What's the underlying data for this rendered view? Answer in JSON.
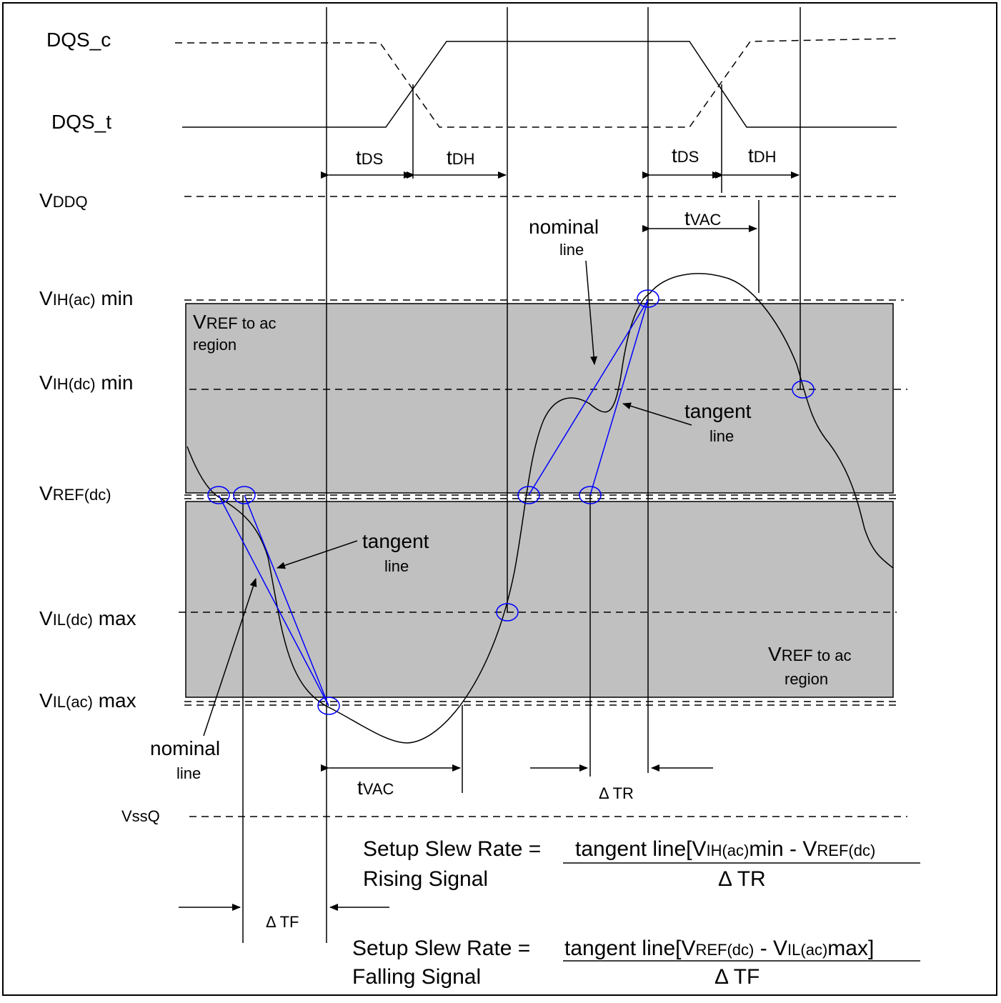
{
  "signals": {
    "dqs_c": "DQS_c",
    "dqs_t": "DQS_t"
  },
  "timing": {
    "t": "t",
    "ds": "DS",
    "dh": "DH",
    "vac": "VAC",
    "delta_tr": "Δ TR",
    "delta_tf": "Δ TF"
  },
  "levels": {
    "vddq": {
      "main": "V",
      "sub": "DDQ",
      "tail": ""
    },
    "vih_ac": {
      "main": "V",
      "sub": "IH(ac)",
      "tail": " min"
    },
    "vih_dc": {
      "main": "V",
      "sub": "IH(dc)",
      "tail": " min"
    },
    "vref_dc": {
      "main": "V",
      "sub": "REF(dc)",
      "tail": ""
    },
    "vil_dc": {
      "main": "V",
      "sub": "IL(dc)",
      "tail": " max"
    },
    "vil_ac": {
      "main": "V",
      "sub": "IL(ac)",
      "tail": " max"
    },
    "vssq": "VssQ"
  },
  "regions": {
    "v": "V",
    "sub": "REF to ac",
    "word": "region"
  },
  "annotations": {
    "nominal": "nominal",
    "tangent": "tangent",
    "line": "line"
  },
  "formulas": {
    "rising": {
      "left1": "Setup Slew Rate = ",
      "left2": "Rising Signal",
      "num_a": "tangent line[V",
      "num_a_sub": "IH(ac)",
      "num_b": "min - V",
      "num_b_sub": "REF(dc)",
      "num_c": "",
      "den": "Δ TR"
    },
    "falling": {
      "left1": "Setup Slew Rate = ",
      "left2": "Falling Signal",
      "num_a": "tangent line[V",
      "num_a_sub": "REF(dc)",
      "num_b": " - V",
      "num_b_sub": "IL(ac)",
      "num_c": "max]",
      "den": "Δ TF"
    }
  },
  "colors": {
    "region_fill": "#c0c0c0",
    "tangent_blue": "#0000ff",
    "ink": "#000000"
  }
}
